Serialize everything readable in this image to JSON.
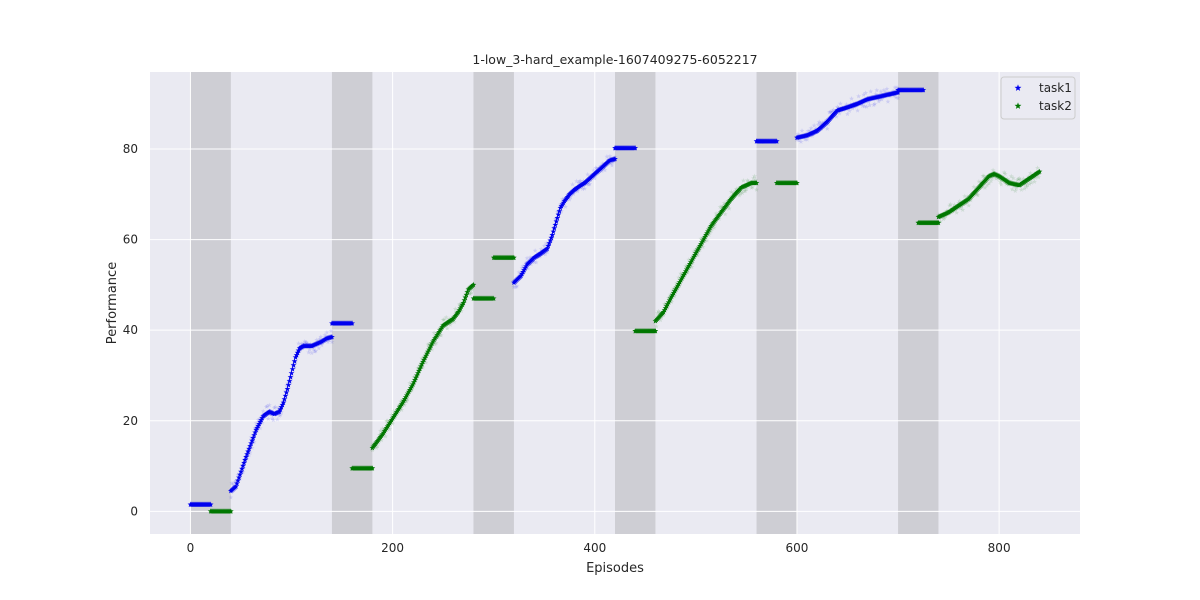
{
  "chart_data": {
    "type": "scatter",
    "title": "1-low_3-hard_example-1607409275-6052217",
    "xlabel": "Episodes",
    "ylabel": "Performance",
    "xlim": [
      -40,
      880
    ],
    "ylim": [
      -5,
      97
    ],
    "xticks": [
      0,
      200,
      400,
      600,
      800
    ],
    "yticks": [
      0,
      20,
      40,
      60,
      80
    ],
    "grid": true,
    "legend_position": "top-right",
    "shaded_regions": [
      [
        0,
        40
      ],
      [
        140,
        180
      ],
      [
        280,
        320
      ],
      [
        420,
        460
      ],
      [
        560,
        600
      ],
      [
        700,
        740
      ]
    ],
    "series": [
      {
        "name": "task1",
        "color": "#0000ee",
        "marker": "star",
        "segments": [
          {
            "x": [
              0,
              20
            ],
            "y": [
              1.5,
              1.5
            ]
          },
          {
            "x": [
              40,
              45,
              55,
              65,
              72,
              78,
              83,
              88,
              92,
              96,
              100,
              104,
              108,
              112,
              116,
              120,
              125,
              130,
              135,
              140
            ],
            "y": [
              4.5,
              5.5,
              12,
              18,
              21,
              22,
              21.5,
              22,
              24,
              27,
              30.5,
              34,
              36,
              36.5,
              36.5,
              36.5,
              37,
              37.5,
              38.2,
              38.5
            ]
          },
          {
            "x": [
              140,
              160
            ],
            "y": [
              41.5,
              41.5
            ]
          },
          {
            "x": [
              320,
              327,
              333,
              340,
              347,
              353,
              358,
              362,
              366,
              370,
              375,
              380,
              385,
              390,
              395,
              400,
              405,
              410,
              415,
              420
            ],
            "y": [
              50.5,
              52,
              54.5,
              56,
              57,
              58,
              61,
              64,
              67,
              68.5,
              70,
              71,
              71.8,
              72.5,
              73.5,
              74.5,
              75.5,
              76.5,
              77.5,
              77.8
            ]
          },
          {
            "x": [
              420,
              440
            ],
            "y": [
              80.2,
              80.2
            ]
          },
          {
            "x": [
              560,
              580
            ],
            "y": [
              81.7,
              81.7
            ]
          },
          {
            "x": [
              600,
              610,
              620,
              630,
              640,
              650,
              660,
              670,
              680,
              690,
              700
            ],
            "y": [
              82.5,
              83,
              84,
              86,
              88.5,
              89.2,
              90,
              91,
              91.5,
              92,
              92.5
            ]
          },
          {
            "x": [
              700,
              725
            ],
            "y": [
              93,
              93
            ]
          }
        ]
      },
      {
        "name": "task2",
        "color": "#007700",
        "marker": "star",
        "segments": [
          {
            "x": [
              20,
              40
            ],
            "y": [
              0,
              0
            ]
          },
          {
            "x": [
              160,
              180
            ],
            "y": [
              9.5,
              9.5
            ]
          },
          {
            "x": [
              180,
              190,
              200,
              210,
              220,
              230,
              240,
              250,
              260,
              265,
              270,
              275,
              280
            ],
            "y": [
              14,
              17,
              20.5,
              24,
              28,
              33,
              37.5,
              41,
              42.5,
              44,
              46,
              49,
              50
            ]
          },
          {
            "x": [
              280,
              300
            ],
            "y": [
              47,
              47
            ]
          },
          {
            "x": [
              300,
              320
            ],
            "y": [
              56,
              56
            ]
          },
          {
            "x": [
              440,
              460
            ],
            "y": [
              39.8,
              39.8
            ]
          },
          {
            "x": [
              460,
              468,
              475,
              485,
              495,
              505,
              515,
              525,
              535,
              545,
              555,
              560
            ],
            "y": [
              42,
              44,
              47,
              51,
              55,
              59,
              63,
              66,
              69,
              71.5,
              72.5,
              72.5
            ]
          },
          {
            "x": [
              580,
              600
            ],
            "y": [
              72.5,
              72.5
            ]
          },
          {
            "x": [
              720,
              740
            ],
            "y": [
              63.7,
              63.7
            ]
          },
          {
            "x": [
              740,
              750,
              760,
              770,
              780,
              790,
              795,
              800,
              810,
              820,
              830,
              840
            ],
            "y": [
              65,
              66,
              67.5,
              69,
              71.5,
              74,
              74.5,
              74,
              72.5,
              72,
              73.5,
              75
            ]
          }
        ]
      }
    ]
  }
}
